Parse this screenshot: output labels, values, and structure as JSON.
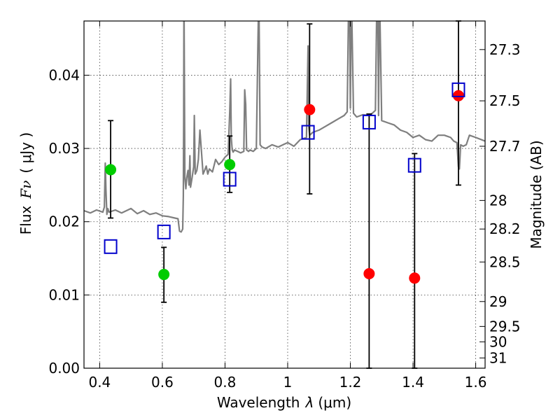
{
  "chart_data": {
    "type": "scatter",
    "xlabel_prefix": "Wavelength",
    "xlabel_symbol": "λ",
    "xlabel_unit": "(μm)",
    "ylabel_prefix": "Flux",
    "ylabel_symbol": "Fν",
    "ylabel_unit": "( μJy )",
    "y2label": "Magnitude (AB)",
    "xlim": [
      0.35,
      1.63
    ],
    "ylim": [
      0.0,
      0.0474
    ],
    "grid": true,
    "x_ticks": [
      0.4,
      0.6,
      0.8,
      1.0,
      1.2,
      1.4,
      1.6
    ],
    "x_tick_labels": [
      "0.4",
      "0.6",
      "0.8",
      "1",
      "1.2",
      "1.4",
      "1.6"
    ],
    "y_ticks": [
      0.0,
      0.01,
      0.02,
      0.03,
      0.04
    ],
    "y_tick_labels": [
      "0.00",
      "0.01",
      "0.02",
      "0.03",
      "0.04"
    ],
    "y2_ticks": [
      {
        "flux": 0.0435,
        "label": "27.3"
      },
      {
        "flux": 0.0365,
        "label": "27.5"
      },
      {
        "flux": 0.0303,
        "label": "27.7"
      },
      {
        "flux": 0.0229,
        "label": "28"
      },
      {
        "flux": 0.019,
        "label": "28.2"
      },
      {
        "flux": 0.0145,
        "label": "28.5"
      },
      {
        "flux": 0.0091,
        "label": "29"
      },
      {
        "flux": 0.0057,
        "label": "29.5"
      },
      {
        "flux": 0.0036,
        "label": "30"
      },
      {
        "flux": 0.0014,
        "label": "31"
      }
    ],
    "series": [
      {
        "name": "model-spectrum",
        "kind": "line",
        "color": "#7f7f7f",
        "x": [
          0.35,
          0.37,
          0.39,
          0.41,
          0.415,
          0.418,
          0.42,
          0.423,
          0.426,
          0.43,
          0.45,
          0.47,
          0.5,
          0.52,
          0.54,
          0.56,
          0.58,
          0.6,
          0.62,
          0.64,
          0.65,
          0.655,
          0.66,
          0.665,
          0.667,
          0.668,
          0.669,
          0.672,
          0.675,
          0.678,
          0.682,
          0.685,
          0.688,
          0.69,
          0.695,
          0.7,
          0.702,
          0.705,
          0.71,
          0.715,
          0.72,
          0.73,
          0.735,
          0.74,
          0.745,
          0.75,
          0.76,
          0.77,
          0.78,
          0.79,
          0.8,
          0.81,
          0.815,
          0.818,
          0.82,
          0.823,
          0.826,
          0.83,
          0.84,
          0.85,
          0.86,
          0.863,
          0.866,
          0.869,
          0.872,
          0.875,
          0.88,
          0.89,
          0.9,
          0.905,
          0.908,
          0.912,
          0.918,
          0.93,
          0.95,
          0.97,
          0.99,
          1.0,
          1.02,
          1.04,
          1.06,
          1.065,
          1.067,
          1.07,
          1.08,
          1.1,
          1.12,
          1.14,
          1.16,
          1.18,
          1.19,
          1.195,
          1.197,
          1.2,
          1.203,
          1.21,
          1.22,
          1.24,
          1.26,
          1.27,
          1.28,
          1.285,
          1.287,
          1.29,
          1.293,
          1.3,
          1.32,
          1.34,
          1.36,
          1.38,
          1.4,
          1.42,
          1.44,
          1.46,
          1.48,
          1.5,
          1.52,
          1.53,
          1.54,
          1.545,
          1.548,
          1.552,
          1.56,
          1.57,
          1.58,
          1.6,
          1.63
        ],
        "y": [
          0.0215,
          0.0212,
          0.0216,
          0.0213,
          0.022,
          0.028,
          0.0245,
          0.021,
          0.0218,
          0.0213,
          0.0216,
          0.0212,
          0.0218,
          0.0211,
          0.0215,
          0.021,
          0.0212,
          0.0208,
          0.0207,
          0.0205,
          0.0204,
          0.0187,
          0.0186,
          0.019,
          0.0235,
          0.034,
          0.052,
          0.026,
          0.0245,
          0.026,
          0.027,
          0.025,
          0.029,
          0.0247,
          0.026,
          0.0275,
          0.0345,
          0.0265,
          0.027,
          0.0285,
          0.0325,
          0.0265,
          0.027,
          0.0276,
          0.0265,
          0.0272,
          0.0268,
          0.0285,
          0.0278,
          0.0282,
          0.0288,
          0.0292,
          0.035,
          0.0395,
          0.0315,
          0.0298,
          0.0295,
          0.0298,
          0.0296,
          0.0294,
          0.0296,
          0.038,
          0.036,
          0.0298,
          0.0297,
          0.0296,
          0.0298,
          0.0296,
          0.03,
          0.044,
          0.052,
          0.0305,
          0.0302,
          0.03,
          0.0305,
          0.0302,
          0.0306,
          0.0308,
          0.0303,
          0.0312,
          0.0315,
          0.044,
          0.033,
          0.0318,
          0.0322,
          0.0325,
          0.033,
          0.0335,
          0.034,
          0.0345,
          0.035,
          0.052,
          0.052,
          0.0355,
          0.052,
          0.0348,
          0.0343,
          0.0346,
          0.0345,
          0.0348,
          0.0352,
          0.052,
          0.052,
          0.0345,
          0.052,
          0.0338,
          0.0335,
          0.0332,
          0.0325,
          0.0322,
          0.0315,
          0.0318,
          0.0312,
          0.031,
          0.0318,
          0.0318,
          0.0315,
          0.031,
          0.0308,
          0.0275,
          0.0272,
          0.0305,
          0.0303,
          0.0305,
          0.0318,
          0.0315,
          0.031
        ]
      },
      {
        "name": "observed-detections",
        "kind": "points",
        "color": "#00cc00",
        "marker": "circle",
        "x": [
          0.435,
          0.605,
          0.815
        ],
        "y": [
          0.0271,
          0.0128,
          0.0278
        ],
        "yerr_low": [
          0.0205,
          0.009,
          0.024
        ],
        "yerr_high": [
          0.0338,
          0.0165,
          0.0317
        ]
      },
      {
        "name": "observed-limits",
        "kind": "points",
        "color": "#ff0000",
        "marker": "circle",
        "x": [
          1.07,
          1.26,
          1.405,
          1.545
        ],
        "y": [
          0.0353,
          0.0129,
          0.0123,
          0.0372
        ],
        "yerr_low": [
          0.0238,
          0.0,
          0.0,
          0.025
        ],
        "yerr_high": [
          0.047,
          0.0347,
          0.0293,
          0.0474
        ]
      },
      {
        "name": "model-photometry",
        "kind": "points",
        "color": "#0000cc",
        "marker": "open-square",
        "x": [
          0.435,
          0.605,
          0.815,
          1.065,
          1.26,
          1.405,
          1.545
        ],
        "y": [
          0.0166,
          0.0186,
          0.0258,
          0.0322,
          0.0336,
          0.0277,
          0.038
        ]
      }
    ]
  }
}
